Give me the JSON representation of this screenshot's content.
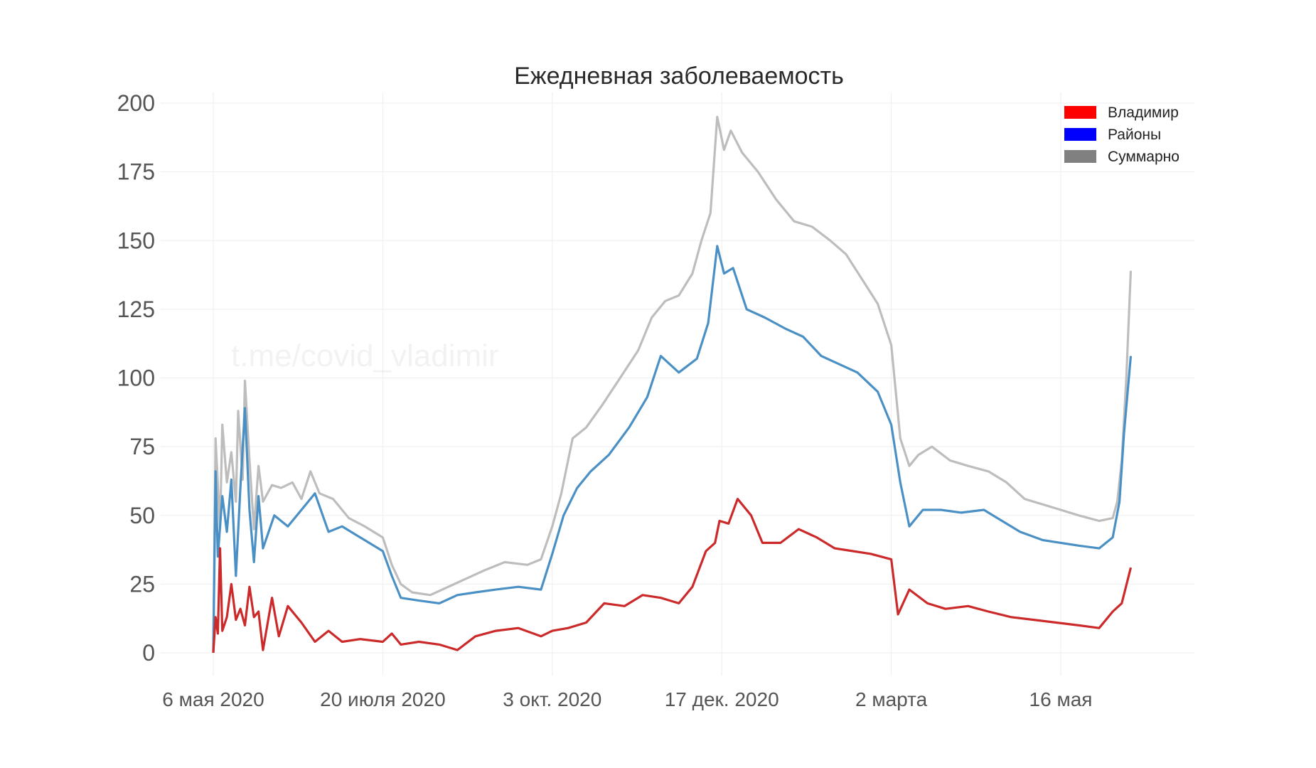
{
  "chart_data": {
    "type": "line",
    "title": "Ежедневная заболеваемость",
    "watermark": "t.me/covid_vladimir",
    "x_unit": "date",
    "xlim": [
      "2020-05-06",
      "2021-07-01"
    ],
    "ylim": [
      0,
      200
    ],
    "y_ticks": [
      0,
      25,
      50,
      75,
      100,
      125,
      150,
      175,
      200
    ],
    "x_ticks": [
      {
        "date": "2020-05-06",
        "label": "6 мая 2020"
      },
      {
        "date": "2020-07-20",
        "label": "20 июля 2020"
      },
      {
        "date": "2020-10-03",
        "label": "3 окт. 2020"
      },
      {
        "date": "2020-12-17",
        "label": "17 дек. 2020"
      },
      {
        "date": "2021-03-02",
        "label": "2 марта"
      },
      {
        "date": "2021-05-16",
        "label": "16 мая"
      }
    ],
    "grid": true,
    "legend_position": "top-right",
    "legend": [
      {
        "label": "Владимир",
        "color": "#ff0000"
      },
      {
        "label": "Районы",
        "color": "#0000ff"
      },
      {
        "label": "Суммарно",
        "color": "#808080"
      }
    ],
    "series": [
      {
        "name": "Суммарно",
        "color": "#bdbdbd",
        "points": [
          [
            "2020-05-06",
            0
          ],
          [
            "2020-05-07",
            78
          ],
          [
            "2020-05-09",
            45
          ],
          [
            "2020-05-10",
            83
          ],
          [
            "2020-05-12",
            62
          ],
          [
            "2020-05-14",
            73
          ],
          [
            "2020-05-16",
            55
          ],
          [
            "2020-05-17",
            88
          ],
          [
            "2020-05-19",
            63
          ],
          [
            "2020-05-20",
            99
          ],
          [
            "2020-05-22",
            70
          ],
          [
            "2020-05-24",
            45
          ],
          [
            "2020-05-26",
            68
          ],
          [
            "2020-05-28",
            55
          ],
          [
            "2020-06-01",
            61
          ],
          [
            "2020-06-05",
            60
          ],
          [
            "2020-06-10",
            62
          ],
          [
            "2020-06-14",
            56
          ],
          [
            "2020-06-18",
            66
          ],
          [
            "2020-06-22",
            58
          ],
          [
            "2020-06-28",
            56
          ],
          [
            "2020-07-05",
            49
          ],
          [
            "2020-07-12",
            46
          ],
          [
            "2020-07-20",
            42
          ],
          [
            "2020-07-24",
            32
          ],
          [
            "2020-07-28",
            25
          ],
          [
            "2020-08-02",
            22
          ],
          [
            "2020-08-10",
            21
          ],
          [
            "2020-08-18",
            24
          ],
          [
            "2020-08-26",
            27
          ],
          [
            "2020-09-03",
            30
          ],
          [
            "2020-09-12",
            33
          ],
          [
            "2020-09-22",
            32
          ],
          [
            "2020-09-28",
            34
          ],
          [
            "2020-10-03",
            46
          ],
          [
            "2020-10-07",
            58
          ],
          [
            "2020-10-12",
            78
          ],
          [
            "2020-10-18",
            82
          ],
          [
            "2020-10-25",
            90
          ],
          [
            "2020-11-02",
            100
          ],
          [
            "2020-11-10",
            110
          ],
          [
            "2020-11-16",
            122
          ],
          [
            "2020-11-22",
            128
          ],
          [
            "2020-11-28",
            130
          ],
          [
            "2020-12-04",
            138
          ],
          [
            "2020-12-08",
            150
          ],
          [
            "2020-12-12",
            160
          ],
          [
            "2020-12-15",
            195
          ],
          [
            "2020-12-18",
            183
          ],
          [
            "2020-12-21",
            190
          ],
          [
            "2020-12-26",
            182
          ],
          [
            "2021-01-02",
            175
          ],
          [
            "2021-01-10",
            165
          ],
          [
            "2021-01-18",
            157
          ],
          [
            "2021-01-26",
            155
          ],
          [
            "2021-02-03",
            150
          ],
          [
            "2021-02-10",
            145
          ],
          [
            "2021-02-17",
            136
          ],
          [
            "2021-02-24",
            127
          ],
          [
            "2021-03-02",
            112
          ],
          [
            "2021-03-06",
            78
          ],
          [
            "2021-03-10",
            68
          ],
          [
            "2021-03-14",
            72
          ],
          [
            "2021-03-20",
            75
          ],
          [
            "2021-03-28",
            70
          ],
          [
            "2021-04-05",
            68
          ],
          [
            "2021-04-14",
            66
          ],
          [
            "2021-04-22",
            62
          ],
          [
            "2021-04-30",
            56
          ],
          [
            "2021-05-08",
            54
          ],
          [
            "2021-05-16",
            52
          ],
          [
            "2021-05-24",
            50
          ],
          [
            "2021-06-02",
            48
          ],
          [
            "2021-06-08",
            49
          ],
          [
            "2021-06-10",
            55
          ],
          [
            "2021-06-12",
            70
          ],
          [
            "2021-06-14",
            100
          ],
          [
            "2021-06-16",
            139
          ]
        ]
      },
      {
        "name": "Районы",
        "color": "#4a90c4",
        "points": [
          [
            "2020-05-06",
            0
          ],
          [
            "2020-05-07",
            66
          ],
          [
            "2020-05-08",
            35
          ],
          [
            "2020-05-10",
            57
          ],
          [
            "2020-05-12",
            44
          ],
          [
            "2020-05-14",
            63
          ],
          [
            "2020-05-16",
            28
          ],
          [
            "2020-05-18",
            60
          ],
          [
            "2020-05-20",
            89
          ],
          [
            "2020-05-22",
            52
          ],
          [
            "2020-05-24",
            33
          ],
          [
            "2020-05-26",
            57
          ],
          [
            "2020-05-28",
            38
          ],
          [
            "2020-06-02",
            50
          ],
          [
            "2020-06-08",
            46
          ],
          [
            "2020-06-14",
            52
          ],
          [
            "2020-06-20",
            58
          ],
          [
            "2020-06-26",
            44
          ],
          [
            "2020-07-02",
            46
          ],
          [
            "2020-07-10",
            42
          ],
          [
            "2020-07-20",
            37
          ],
          [
            "2020-07-24",
            28
          ],
          [
            "2020-07-28",
            20
          ],
          [
            "2020-08-05",
            19
          ],
          [
            "2020-08-14",
            18
          ],
          [
            "2020-08-22",
            21
          ],
          [
            "2020-08-30",
            22
          ],
          [
            "2020-09-08",
            23
          ],
          [
            "2020-09-18",
            24
          ],
          [
            "2020-09-28",
            23
          ],
          [
            "2020-10-03",
            36
          ],
          [
            "2020-10-08",
            50
          ],
          [
            "2020-10-14",
            60
          ],
          [
            "2020-10-20",
            66
          ],
          [
            "2020-10-28",
            72
          ],
          [
            "2020-11-06",
            82
          ],
          [
            "2020-11-14",
            93
          ],
          [
            "2020-11-20",
            108
          ],
          [
            "2020-11-28",
            102
          ],
          [
            "2020-12-06",
            107
          ],
          [
            "2020-12-11",
            120
          ],
          [
            "2020-12-15",
            148
          ],
          [
            "2020-12-18",
            138
          ],
          [
            "2020-12-22",
            140
          ],
          [
            "2020-12-28",
            125
          ],
          [
            "2021-01-05",
            122
          ],
          [
            "2021-01-14",
            118
          ],
          [
            "2021-01-22",
            115
          ],
          [
            "2021-01-30",
            108
          ],
          [
            "2021-02-07",
            105
          ],
          [
            "2021-02-15",
            102
          ],
          [
            "2021-02-24",
            95
          ],
          [
            "2021-03-02",
            83
          ],
          [
            "2021-03-06",
            62
          ],
          [
            "2021-03-10",
            46
          ],
          [
            "2021-03-16",
            52
          ],
          [
            "2021-03-24",
            52
          ],
          [
            "2021-04-02",
            51
          ],
          [
            "2021-04-12",
            52
          ],
          [
            "2021-04-20",
            48
          ],
          [
            "2021-04-28",
            44
          ],
          [
            "2021-05-08",
            41
          ],
          [
            "2021-05-16",
            40
          ],
          [
            "2021-05-24",
            39
          ],
          [
            "2021-06-02",
            38
          ],
          [
            "2021-06-08",
            42
          ],
          [
            "2021-06-11",
            55
          ],
          [
            "2021-06-13",
            80
          ],
          [
            "2021-06-16",
            108
          ]
        ]
      },
      {
        "name": "Владимир",
        "color": "#cc2a2a",
        "points": [
          [
            "2020-05-06",
            0
          ],
          [
            "2020-05-07",
            13
          ],
          [
            "2020-05-08",
            7
          ],
          [
            "2020-05-09",
            38
          ],
          [
            "2020-05-10",
            8
          ],
          [
            "2020-05-12",
            13
          ],
          [
            "2020-05-14",
            25
          ],
          [
            "2020-05-16",
            12
          ],
          [
            "2020-05-18",
            16
          ],
          [
            "2020-05-20",
            10
          ],
          [
            "2020-05-22",
            24
          ],
          [
            "2020-05-24",
            13
          ],
          [
            "2020-05-26",
            15
          ],
          [
            "2020-05-28",
            1
          ],
          [
            "2020-06-01",
            20
          ],
          [
            "2020-06-04",
            6
          ],
          [
            "2020-06-08",
            17
          ],
          [
            "2020-06-14",
            11
          ],
          [
            "2020-06-20",
            4
          ],
          [
            "2020-06-26",
            8
          ],
          [
            "2020-07-02",
            4
          ],
          [
            "2020-07-10",
            5
          ],
          [
            "2020-07-20",
            4
          ],
          [
            "2020-07-24",
            7
          ],
          [
            "2020-07-28",
            3
          ],
          [
            "2020-08-05",
            4
          ],
          [
            "2020-08-14",
            3
          ],
          [
            "2020-08-22",
            1
          ],
          [
            "2020-08-30",
            6
          ],
          [
            "2020-09-08",
            8
          ],
          [
            "2020-09-18",
            9
          ],
          [
            "2020-09-28",
            6
          ],
          [
            "2020-10-03",
            8
          ],
          [
            "2020-10-10",
            9
          ],
          [
            "2020-10-18",
            11
          ],
          [
            "2020-10-26",
            18
          ],
          [
            "2020-11-04",
            17
          ],
          [
            "2020-11-12",
            21
          ],
          [
            "2020-11-20",
            20
          ],
          [
            "2020-11-28",
            18
          ],
          [
            "2020-12-04",
            24
          ],
          [
            "2020-12-10",
            37
          ],
          [
            "2020-12-14",
            40
          ],
          [
            "2020-12-16",
            48
          ],
          [
            "2020-12-20",
            47
          ],
          [
            "2020-12-24",
            56
          ],
          [
            "2020-12-30",
            50
          ],
          [
            "2021-01-04",
            40
          ],
          [
            "2021-01-12",
            40
          ],
          [
            "2021-01-20",
            45
          ],
          [
            "2021-01-28",
            42
          ],
          [
            "2021-02-05",
            38
          ],
          [
            "2021-02-13",
            37
          ],
          [
            "2021-02-21",
            36
          ],
          [
            "2021-03-02",
            34
          ],
          [
            "2021-03-05",
            14
          ],
          [
            "2021-03-10",
            23
          ],
          [
            "2021-03-18",
            18
          ],
          [
            "2021-03-26",
            16
          ],
          [
            "2021-04-05",
            17
          ],
          [
            "2021-04-14",
            15
          ],
          [
            "2021-04-24",
            13
          ],
          [
            "2021-05-04",
            12
          ],
          [
            "2021-05-14",
            11
          ],
          [
            "2021-05-24",
            10
          ],
          [
            "2021-06-02",
            9
          ],
          [
            "2021-06-08",
            15
          ],
          [
            "2021-06-12",
            18
          ],
          [
            "2021-06-16",
            31
          ]
        ]
      }
    ]
  }
}
